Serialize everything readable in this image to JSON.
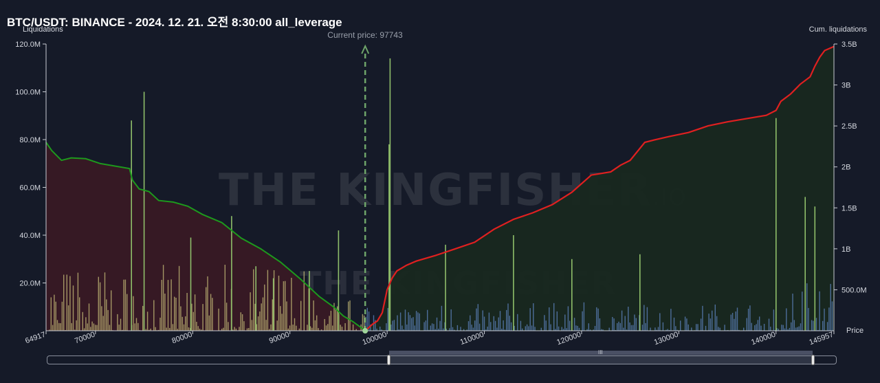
{
  "title": "BTC/USDT: BINANCE - 2024. 12. 21. 오전 8:30:00 all_leverage",
  "watermark": {
    "brand": "THE KINGFISHER",
    "suffix": ".IO"
  },
  "colors": {
    "background": "#151a28",
    "long_cum_line": "#1d9a1d",
    "short_cum_line": "#e02020",
    "long_area": "#3a1a24",
    "short_area": "#18281f",
    "bar_left": "#c9c07a",
    "bar_right": "#5b7fb8",
    "bar_spike": "#8fbf6a",
    "current_price_line": "#6fa56a"
  },
  "chart_data": {
    "type": "bar",
    "left_axis": {
      "label": "Liquidations",
      "ylim": [
        0,
        120000000
      ],
      "ticks": [
        20000000,
        40000000,
        60000000,
        80000000,
        100000000,
        120000000
      ],
      "tick_labels": [
        "20.0M",
        "40.0M",
        "60.0M",
        "80.0M",
        "100.0M",
        "120.0M"
      ]
    },
    "right_axis": {
      "label": "Cum. liquidations",
      "ylim": [
        0,
        3500000000
      ],
      "ticks": [
        500000000,
        1000000000,
        1500000000,
        2000000000,
        2500000000,
        3000000000,
        3500000000
      ],
      "tick_labels": [
        "500.0M",
        "1B",
        "1.5B",
        "2B",
        "2.5B",
        "3B",
        "3.5B"
      ]
    },
    "x_axis": {
      "label": "Price",
      "xlim": [
        64917,
        145957
      ],
      "ticks": [
        64917,
        70000,
        80000,
        90000,
        100000,
        110000,
        120000,
        130000,
        140000,
        145957
      ],
      "tick_labels": [
        "64917",
        "70000",
        "80000",
        "90000",
        "100000",
        "110000",
        "120000",
        "130000",
        "140000",
        "145957"
      ]
    },
    "current_price": {
      "label": "Current price: 97743",
      "value": 97743
    },
    "series": [
      {
        "type": "line",
        "axis": "right",
        "color": "#1d9a1d",
        "x": [
          64917,
          65500,
          66500,
          67500,
          69000,
          70500,
          72000,
          73500,
          73800,
          74500,
          75500,
          76500,
          78000,
          79500,
          81000,
          83000,
          85000,
          87000,
          89000,
          91000,
          93000,
          94500,
          95500,
          96500,
          97300,
          97743
        ],
        "y": [
          2300000000,
          2200000000,
          2080000000,
          2110000000,
          2100000000,
          2040000000,
          2010000000,
          1980000000,
          1840000000,
          1730000000,
          1700000000,
          1590000000,
          1570000000,
          1520000000,
          1420000000,
          1320000000,
          1130000000,
          1000000000,
          840000000,
          640000000,
          420000000,
          290000000,
          180000000,
          110000000,
          40000000,
          0
        ]
      },
      {
        "type": "line",
        "axis": "right",
        "color": "#e02020",
        "x": [
          97743,
          98500,
          99000,
          99500,
          100000,
          100500,
          101000,
          102000,
          103000,
          105000,
          107000,
          109000,
          111000,
          113000,
          115000,
          117000,
          119000,
          121000,
          123000,
          124000,
          125000,
          126500,
          127500,
          129000,
          131000,
          133000,
          135000,
          137000,
          139000,
          140000,
          140500,
          141500,
          142500,
          143500,
          144000,
          144500,
          145000,
          145957
        ],
        "y": [
          0,
          80000000,
          120000000,
          220000000,
          500000000,
          640000000,
          730000000,
          800000000,
          850000000,
          920000000,
          1000000000,
          1080000000,
          1240000000,
          1360000000,
          1440000000,
          1540000000,
          1690000000,
          1900000000,
          1940000000,
          2020000000,
          2080000000,
          2300000000,
          2330000000,
          2370000000,
          2420000000,
          2500000000,
          2550000000,
          2590000000,
          2630000000,
          2690000000,
          2800000000,
          2890000000,
          3010000000,
          3100000000,
          3230000000,
          3340000000,
          3420000000,
          3470000000
        ]
      },
      {
        "type": "bar",
        "axis": "left",
        "name": "",
        "color": "#8fbf6a",
        "x": [
          73700,
          75000,
          79800,
          84000,
          86500,
          88300,
          92000,
          95000,
          100200,
          100300,
          106000,
          113000,
          119000,
          126000,
          140000,
          143000,
          144000
        ],
        "y": [
          88000000,
          100000000,
          39000000,
          48000000,
          27000000,
          22000000,
          25000000,
          42000000,
          78000000,
          114000000,
          36000000,
          40000000,
          30000000,
          32000000,
          89000000,
          56000000,
          52000000
        ]
      }
    ]
  },
  "scrollbar": {
    "grip": "III"
  }
}
